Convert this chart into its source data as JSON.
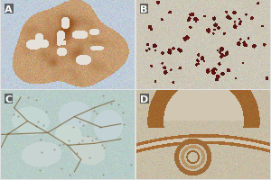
{
  "labels": [
    "A",
    "B",
    "C",
    "D"
  ],
  "label_fontsize": 8,
  "label_fontweight": "bold",
  "label_color": "white",
  "fig_width": 3.0,
  "fig_height": 2.01,
  "dpi": 100,
  "panel_A": {
    "bg": "#c8b8a0",
    "stroma_bg": "#b8c8d8",
    "tissue_brown": "#8B5020",
    "tissue_light": "#c8956a",
    "lumen_color": "#ddd8d0"
  },
  "panel_B": {
    "bg": "#ccc8b8",
    "tissue_tan": "#c0b898",
    "dot_color": "#6B1010",
    "bg_blue": "#c8ccc0"
  },
  "panel_C": {
    "bg": "#b8ccc8",
    "lobule_fill": "#c8d8d4",
    "septa_color": "#9B8858",
    "bg_teal": "#aabbb8"
  },
  "panel_D": {
    "bg": "#c8c0a8",
    "tissue_brown": "#a07840",
    "lumen_color": "#d8c8a8",
    "bg_pale": "#c0b898"
  }
}
